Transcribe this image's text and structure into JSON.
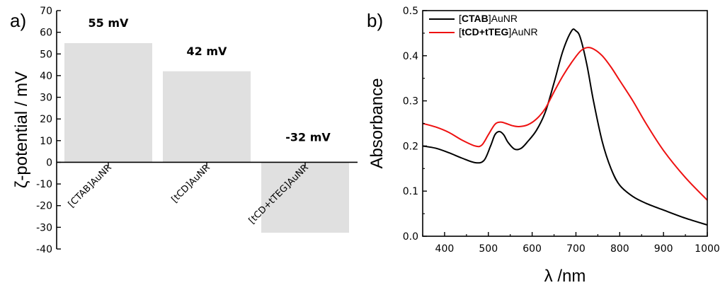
{
  "panels": {
    "a": "a)",
    "b": "b)"
  },
  "chart_data": [
    {
      "type": "bar",
      "ylabel": "ζ-potential / mV",
      "ylim": [
        -40,
        70
      ],
      "yticks": [
        -40,
        -30,
        -20,
        -10,
        0,
        10,
        20,
        30,
        40,
        50,
        60,
        70
      ],
      "categories": [
        "[CTAB]AuNR",
        "[tCD]AuNR",
        "[tCD+tTEG]AuNR"
      ],
      "values": [
        55,
        42,
        -32.5
      ],
      "data_labels": [
        "55 mV",
        "42 mV",
        "-32 mV"
      ],
      "bar_color": "#e0e0e0"
    },
    {
      "type": "line",
      "xlabel": "λ /nm",
      "ylabel": "Absorbance",
      "xlim": [
        350,
        1000
      ],
      "ylim": [
        0.0,
        0.5
      ],
      "xticks": [
        400,
        500,
        600,
        700,
        800,
        900,
        1000
      ],
      "yticks": [
        0.0,
        0.1,
        0.2,
        0.3,
        0.4,
        0.5
      ],
      "ytick_labels": [
        "0.0",
        "0.1",
        "0.2",
        "0.3",
        "0.4",
        "0.5"
      ],
      "legend_placement": "top-left",
      "series": [
        {
          "name": "[CTAB]AuNR",
          "name_bold": "CTAB",
          "color": "#000000",
          "x": [
            350,
            380,
            410,
            440,
            470,
            490,
            505,
            515,
            525,
            535,
            545,
            560,
            575,
            590,
            610,
            630,
            650,
            670,
            690,
            700,
            710,
            725,
            740,
            760,
            780,
            800,
            830,
            860,
            900,
            950,
            1000
          ],
          "y": [
            0.2,
            0.195,
            0.185,
            0.173,
            0.163,
            0.168,
            0.2,
            0.225,
            0.232,
            0.225,
            0.208,
            0.193,
            0.195,
            0.21,
            0.235,
            0.275,
            0.34,
            0.41,
            0.455,
            0.455,
            0.44,
            0.38,
            0.3,
            0.21,
            0.15,
            0.113,
            0.088,
            0.073,
            0.058,
            0.04,
            0.025
          ]
        },
        {
          "name": "[tCD+tTEG]AuNR",
          "name_bold": "tCD+tTEG",
          "color": "#ee1111",
          "x": [
            350,
            380,
            410,
            440,
            470,
            485,
            500,
            515,
            528,
            540,
            555,
            570,
            590,
            610,
            630,
            650,
            670,
            690,
            710,
            725,
            740,
            760,
            780,
            800,
            830,
            860,
            900,
            950,
            1000
          ],
          "y": [
            0.25,
            0.242,
            0.23,
            0.213,
            0.2,
            0.202,
            0.225,
            0.248,
            0.253,
            0.25,
            0.245,
            0.243,
            0.247,
            0.26,
            0.283,
            0.32,
            0.355,
            0.385,
            0.41,
            0.418,
            0.415,
            0.4,
            0.375,
            0.345,
            0.3,
            0.25,
            0.19,
            0.13,
            0.08
          ]
        }
      ]
    }
  ]
}
